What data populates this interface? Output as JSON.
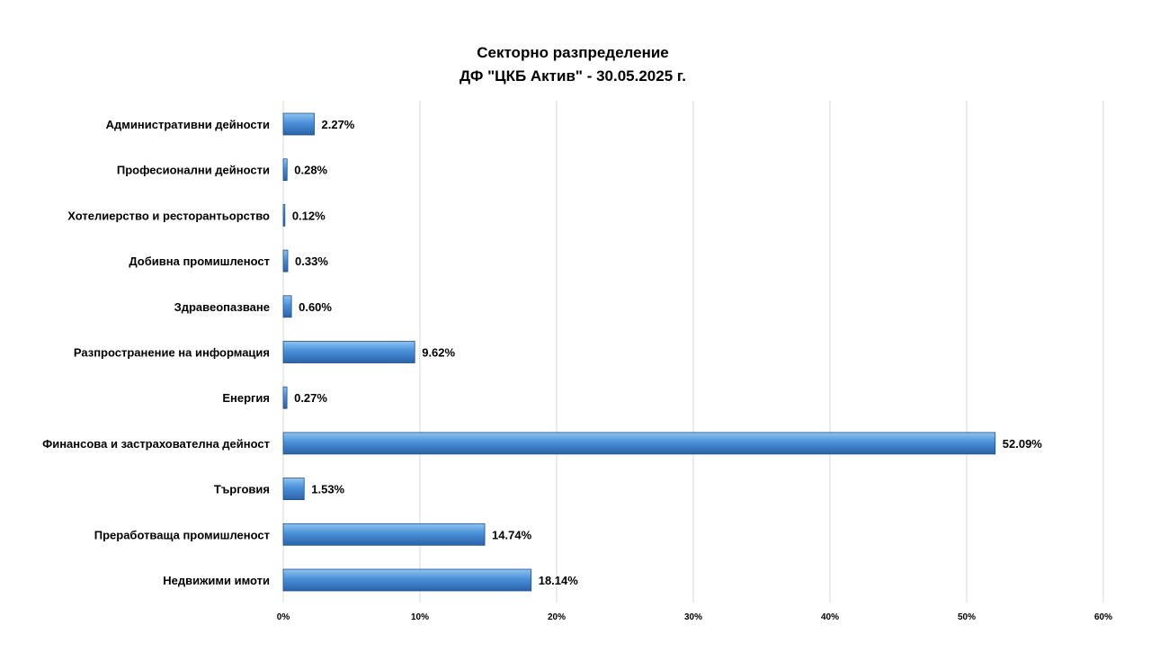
{
  "chart_data": {
    "type": "bar",
    "orientation": "horizontal",
    "title": [
      "Секторно разпределение",
      "ДФ \"ЦКБ Актив\" - 30.05.2025 г."
    ],
    "categories": [
      "Административни дейности",
      "Професионални дейности",
      "Хотелиерство и ресторантьорство",
      "Добивна промишленост",
      "Здравеопазване",
      "Разпространение на информация",
      "Енергия",
      "Финансова и застрахователна дейност",
      "Търговия",
      "Преработваща промишленост",
      "Недвижими имоти"
    ],
    "values": [
      2.27,
      0.28,
      0.12,
      0.33,
      0.6,
      9.62,
      0.27,
      52.09,
      1.53,
      14.74,
      18.14
    ],
    "value_labels": [
      "2.27%",
      "0.28%",
      "0.12%",
      "0.33%",
      "0.60%",
      "9.62%",
      "0.27%",
      "52.09%",
      "1.53%",
      "14.74%",
      "18.14%"
    ],
    "xlim": [
      0,
      60
    ],
    "xticks": [
      0,
      10,
      20,
      30,
      40,
      50,
      60
    ],
    "xtick_labels": [
      "0%",
      "10%",
      "20%",
      "30%",
      "40%",
      "50%",
      "60%"
    ],
    "grid": "vertical",
    "legend": "none",
    "colors": {
      "bar_top": "#8fc4f0",
      "bar_mid": "#4a90d9",
      "bar_bottom": "#2a62a8",
      "bar_edge": "#1f4f8c",
      "grid": "#d9d9d9"
    }
  }
}
